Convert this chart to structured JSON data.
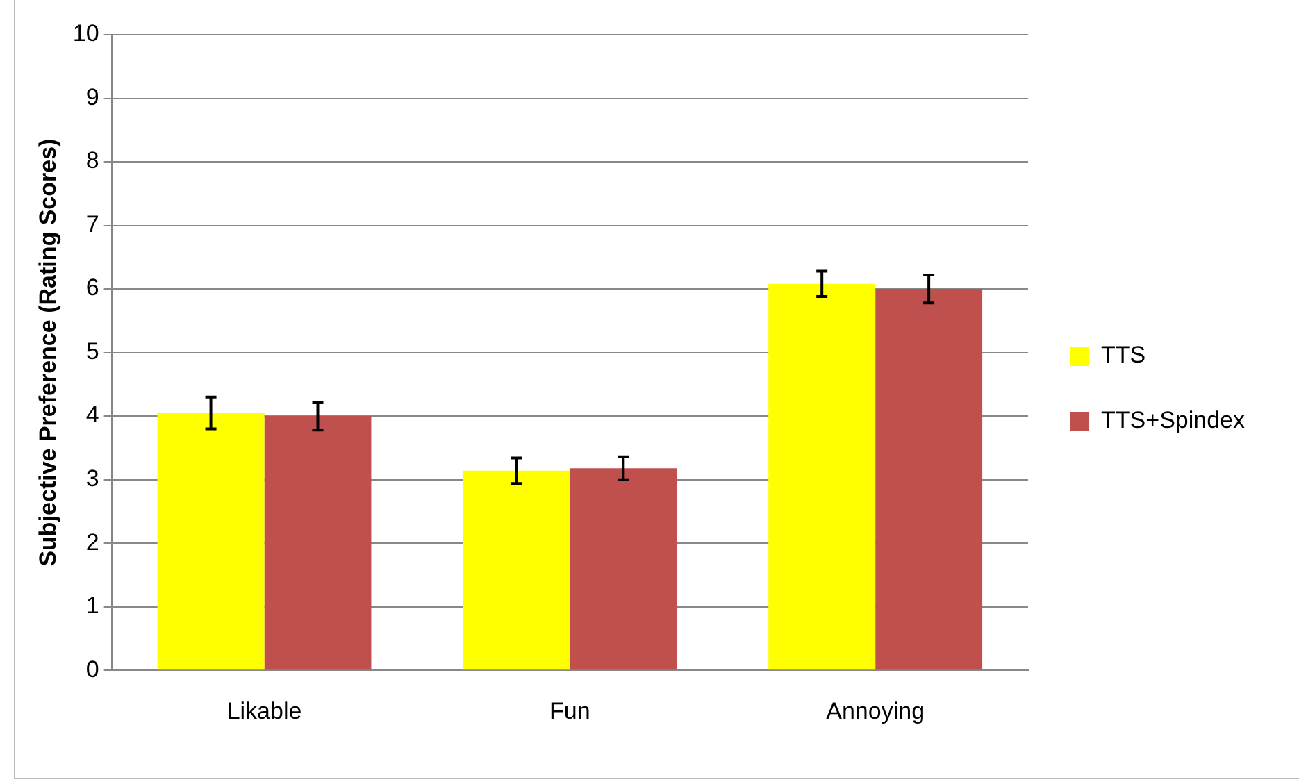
{
  "chart_data": {
    "type": "bar",
    "ylabel": "Subjective Preference (Rating Scores)",
    "categories": [
      "Likable",
      "Fun",
      "Annoying"
    ],
    "series": [
      {
        "name": "TTS",
        "color": "#ffff00",
        "values": [
          4.05,
          3.14,
          6.08
        ],
        "errors": [
          0.25,
          0.2,
          0.2
        ]
      },
      {
        "name": "TTS+Spindex",
        "color": "#c0504d",
        "values": [
          4.0,
          3.18,
          6.0
        ],
        "errors": [
          0.22,
          0.18,
          0.22
        ]
      }
    ],
    "ylim": [
      0,
      10
    ],
    "yticks": [
      0,
      1,
      2,
      3,
      4,
      5,
      6,
      7,
      8,
      9,
      10
    ],
    "grid": "y",
    "legend": "right"
  }
}
